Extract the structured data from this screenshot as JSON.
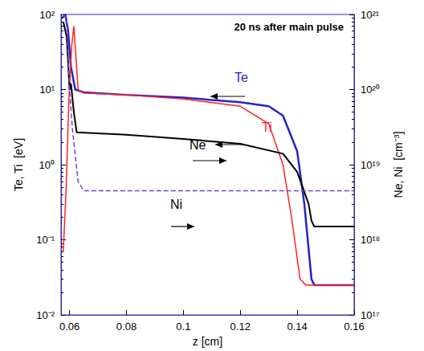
{
  "chart_data": {
    "type": "line",
    "title": "20 ns after main pulse",
    "x_label": "z [cm]",
    "y_label": "Te, Ti  [eV]",
    "y2_label": "Ne, Ni  [cm⁻³]",
    "log": "y",
    "grid": false,
    "xlim": [
      0.057,
      0.16
    ],
    "xticks": [
      0.06,
      0.08,
      0.1,
      0.12,
      0.14,
      0.16
    ],
    "ylim": [
      0.01,
      100
    ],
    "yticks": [
      {
        "value": 0.01,
        "label": "10⁻²"
      },
      {
        "value": 0.1,
        "label": "10⁻¹"
      },
      {
        "value": 1,
        "label": "10⁰"
      },
      {
        "value": 10,
        "label": "10¹"
      },
      {
        "value": 100,
        "label": "10²"
      }
    ],
    "y2lim": [
      1e+17,
      1e+21
    ],
    "y2ticks": [
      {
        "value": 1e+17,
        "label": "10¹⁷"
      },
      {
        "value": 1e+18,
        "label": "10¹⁸"
      },
      {
        "value": 1e+19,
        "label": "10¹⁹"
      },
      {
        "value": 1e+20,
        "label": "10²⁰"
      },
      {
        "value": 1e+21,
        "label": "10²¹"
      }
    ],
    "series": [
      {
        "name": "Te",
        "color": "#2323c8",
        "line_style": "solid",
        "x": [
          0.0575,
          0.0585,
          0.0595,
          0.0605,
          0.062,
          0.065,
          0.08,
          0.1,
          0.12,
          0.13,
          0.135,
          0.14,
          0.1425,
          0.145,
          0.146,
          0.16
        ],
        "values": [
          90,
          100,
          60,
          20,
          10,
          9.2,
          8.5,
          7.8,
          6.8,
          6,
          4.5,
          1.5,
          0.3,
          0.03,
          0.025,
          0.025
        ]
      },
      {
        "name": "Ti",
        "color": "#ff2020",
        "line_style": "solid",
        "x": [
          0.0578,
          0.0588,
          0.0598,
          0.0608,
          0.0615,
          0.063,
          0.065,
          0.08,
          0.1,
          0.12,
          0.13,
          0.135,
          0.138,
          0.141,
          0.143,
          0.16
        ],
        "values": [
          0.07,
          0.5,
          8,
          40,
          70,
          10,
          9,
          8.5,
          7.5,
          6,
          3.5,
          1,
          0.2,
          0.03,
          0.025,
          0.025
        ]
      },
      {
        "name": "Ne",
        "color": "#000000",
        "line_style": "solid",
        "axis": "y2",
        "x": [
          0.0578,
          0.059,
          0.06,
          0.0605,
          0.0615,
          0.0625,
          0.08,
          0.1,
          0.12,
          0.135,
          0.14,
          0.144,
          0.145,
          0.146,
          0.16
        ],
        "values": [
          8e+20,
          5e+20,
          1e+20,
          1.2e+20,
          5e+19,
          2.7e+19,
          2.5e+19,
          2.2e+19,
          1.9e+19,
          1.4e+19,
          8e+18,
          3e+18,
          1.8e+18,
          1.5e+18,
          1.5e+18
        ]
      },
      {
        "name": "Ni",
        "color": "#7a3fd0",
        "line_style": "dashed",
        "axis": "y2",
        "x": [
          0.0575,
          0.059,
          0.06,
          0.061,
          0.063,
          0.065,
          0.16
        ],
        "values": [
          1e+21,
          9e+20,
          1e+20,
          3e+19,
          6e+18,
          4.5e+18,
          4.5e+18
        ]
      }
    ]
  }
}
